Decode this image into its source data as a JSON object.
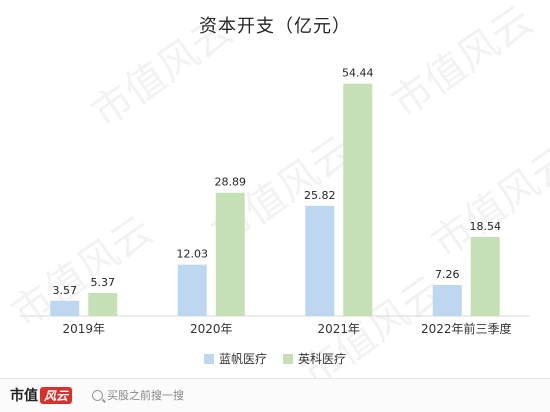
{
  "chart_data": {
    "type": "bar",
    "title": "资本开支（亿元）",
    "categories": [
      "2019年",
      "2020年",
      "2021年",
      "2022年前三季度"
    ],
    "series": [
      {
        "name": "蓝帆医疗",
        "values": [
          3.57,
          12.03,
          25.82,
          7.26
        ],
        "color": "#bdd7ee"
      },
      {
        "name": "英科医疗",
        "values": [
          5.37,
          28.89,
          54.44,
          18.54
        ],
        "color": "#c5e0b4"
      }
    ],
    "ylim": [
      0,
      60
    ],
    "grid": false,
    "legend_position": "bottom"
  },
  "watermark": "市值风云",
  "footer": {
    "brand": "市值",
    "brand_logo": "风云",
    "search_text": "买股之前搜一搜"
  }
}
